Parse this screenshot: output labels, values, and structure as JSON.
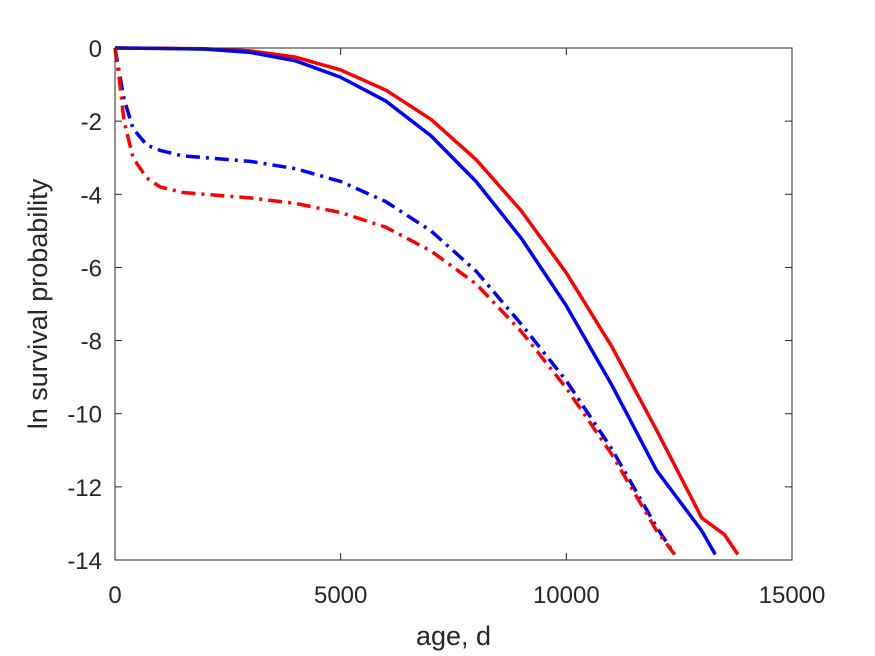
{
  "chart_data": {
    "type": "line",
    "title": "",
    "xlabel": "age, d",
    "ylabel": "ln survival probability",
    "xlim": [
      0,
      15000
    ],
    "ylim": [
      -14,
      0
    ],
    "xticks": [
      0,
      5000,
      10000,
      15000
    ],
    "yticks": [
      0,
      -2,
      -4,
      -6,
      -8,
      -10,
      -12,
      -14
    ],
    "xtick_labels": [
      "0",
      "5000",
      "10000",
      "15000"
    ],
    "ytick_labels": [
      "0",
      "-2",
      "-4",
      "-6",
      "-8",
      "-10",
      "-12",
      "-14"
    ],
    "grid": false,
    "legend": "none",
    "series": [
      {
        "color": "#ff0000",
        "style": "solid",
        "x": [
          0,
          1000,
          2000,
          3000,
          4000,
          5000,
          6000,
          7000,
          8000,
          9000,
          10000,
          11000,
          12000,
          13000,
          13500,
          13800
        ],
        "y": [
          0,
          -0.01,
          -0.02,
          -0.08,
          -0.25,
          -0.6,
          -1.15,
          -1.95,
          -3.05,
          -4.45,
          -6.15,
          -8.15,
          -10.45,
          -12.85,
          -13.3,
          -13.85
        ]
      },
      {
        "color": "#0000ff",
        "style": "solid",
        "x": [
          0,
          1000,
          2000,
          3000,
          4000,
          5000,
          6000,
          7000,
          8000,
          9000,
          10000,
          11000,
          12000,
          13000,
          13300
        ],
        "y": [
          0,
          -0.01,
          -0.03,
          -0.12,
          -0.35,
          -0.8,
          -1.45,
          -2.4,
          -3.65,
          -5.2,
          -7.05,
          -9.2,
          -11.55,
          -13.2,
          -13.85
        ]
      },
      {
        "color": "#0000ff",
        "style": "dashdot",
        "x": [
          0,
          100,
          200,
          400,
          700,
          1000,
          1500,
          2000,
          3000,
          4000,
          5000,
          6000,
          7000,
          8000,
          9000,
          10000,
          11000,
          12000,
          12400
        ],
        "y": [
          0,
          -0.7,
          -1.4,
          -2.2,
          -2.65,
          -2.8,
          -2.95,
          -3.0,
          -3.1,
          -3.3,
          -3.65,
          -4.2,
          -5.0,
          -6.1,
          -7.55,
          -9.1,
          -10.95,
          -13.1,
          -13.85
        ]
      },
      {
        "color": "#ff0000",
        "style": "dashdot",
        "x": [
          0,
          100,
          200,
          400,
          700,
          1000,
          1500,
          2000,
          3000,
          4000,
          5000,
          6000,
          7000,
          8000,
          9000,
          10000,
          11000,
          12000,
          12400
        ],
        "y": [
          0,
          -0.9,
          -2.0,
          -3.0,
          -3.55,
          -3.8,
          -3.95,
          -4.0,
          -4.1,
          -4.25,
          -4.5,
          -4.9,
          -5.55,
          -6.45,
          -7.75,
          -9.3,
          -11.1,
          -13.2,
          -13.85
        ]
      }
    ]
  }
}
